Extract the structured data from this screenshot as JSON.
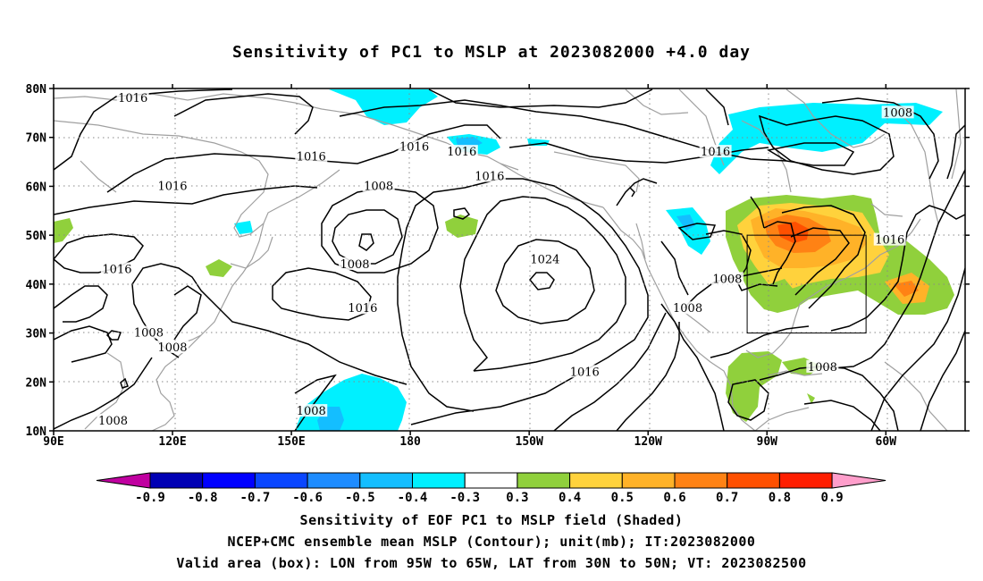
{
  "title": "Sensitivity of PC1 to MSLP at 2023082000 +4.0 day",
  "lat_labels": [
    "80N",
    "70N",
    "60N",
    "50N",
    "40N",
    "30N",
    "20N",
    "10N"
  ],
  "lon_labels": [
    "90E",
    "120E",
    "150E",
    "180",
    "150W",
    "120W",
    "90W",
    "60W"
  ],
  "contour_labels": [
    {
      "text": "1016",
      "lon": 110,
      "lat": 78
    },
    {
      "text": "1016",
      "lon": 181,
      "lat": 68
    },
    {
      "text": "1016",
      "lon": 193,
      "lat": 67
    },
    {
      "text": "1016",
      "lon": 257,
      "lat": 67
    },
    {
      "text": "1016",
      "lon": 155,
      "lat": 66
    },
    {
      "text": "1016",
      "lon": 120,
      "lat": 60
    },
    {
      "text": "1016",
      "lon": 200,
      "lat": 62
    },
    {
      "text": "1008",
      "lon": 303,
      "lat": 75
    },
    {
      "text": "1008",
      "lon": 172,
      "lat": 60
    },
    {
      "text": "1008",
      "lon": 166,
      "lat": 44
    },
    {
      "text": "1024",
      "lon": 214,
      "lat": 45
    },
    {
      "text": "1016",
      "lon": 106,
      "lat": 43
    },
    {
      "text": "1016",
      "lon": 168,
      "lat": 35
    },
    {
      "text": "1016",
      "lon": 301,
      "lat": 49
    },
    {
      "text": "1008",
      "lon": 260,
      "lat": 41
    },
    {
      "text": "1008",
      "lon": 250,
      "lat": 35
    },
    {
      "text": "1008",
      "lon": 114,
      "lat": 30
    },
    {
      "text": "1008",
      "lon": 120,
      "lat": 27
    },
    {
      "text": "1016",
      "lon": 224,
      "lat": 22
    },
    {
      "text": "1008",
      "lon": 284,
      "lat": 23
    },
    {
      "text": "1008",
      "lon": 155,
      "lat": 14
    },
    {
      "text": "1008",
      "lon": 105,
      "lat": 12
    }
  ],
  "colorbar": {
    "labels": [
      "-0.9",
      "-0.8",
      "-0.7",
      "-0.6",
      "-0.5",
      "-0.4",
      "-0.3",
      "0.3",
      "0.4",
      "0.5",
      "0.6",
      "0.7",
      "0.8",
      "0.9"
    ],
    "colors": [
      "#0000b4",
      "#0000ff",
      "#0a46ff",
      "#1e8cff",
      "#14beff",
      "#00f0ff",
      "#ffffff",
      "#90d03c",
      "#ffd23c",
      "#ffb228",
      "#ff8214",
      "#ff5000",
      "#ff1e00"
    ],
    "under_color": "#c000a0",
    "over_color": "#ff9ecb"
  },
  "valid_box": {
    "lon_min": 265,
    "lon_max": 295,
    "lat_min": 30,
    "lat_max": 50
  },
  "captions": [
    "Sensitivity of EOF PC1 to MSLP field (Shaded)",
    "NCEP+CMC ensemble mean MSLP (Contour); unit(mb); IT:2023082000",
    "Valid area (box): LON from 95W to 65W, LAT from 30N to 50N; VT: 2023082500"
  ]
}
